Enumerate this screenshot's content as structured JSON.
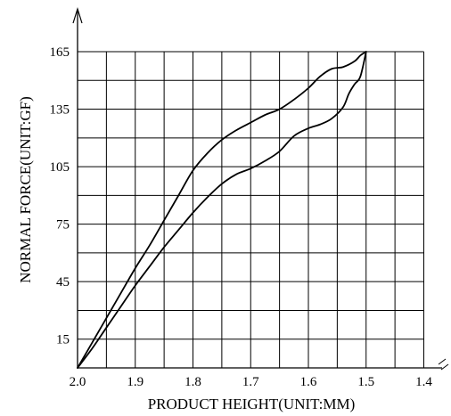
{
  "chart_data": {
    "type": "line",
    "xlabel": "PRODUCT HEIGHT(UNIT:MM)",
    "ylabel": "NORMAL FORCE(UNIT:GF)",
    "x_ticks": [
      "2.0",
      "1.9",
      "1.8",
      "1.7",
      "1.6",
      "1.5",
      "1.4"
    ],
    "y_ticks": [
      "15",
      "45",
      "75",
      "105",
      "135",
      "165"
    ],
    "xlim": [
      2.0,
      1.4
    ],
    "ylim": [
      0,
      165
    ],
    "x_reversed": true,
    "grid": true,
    "series": [
      {
        "x": [
          2.0,
          1.975,
          1.95,
          1.925,
          1.9,
          1.875,
          1.85,
          1.825,
          1.8,
          1.775,
          1.75,
          1.725,
          1.7,
          1.675,
          1.65,
          1.625,
          1.6,
          1.58,
          1.56,
          1.54,
          1.52,
          1.51,
          1.5
        ],
        "y": [
          0,
          13,
          26,
          39,
          52,
          64,
          77,
          90,
          103,
          112,
          119,
          124,
          128,
          132,
          135,
          140,
          146,
          152,
          156,
          157,
          160,
          163,
          165
        ]
      },
      {
        "x": [
          2.0,
          1.975,
          1.95,
          1.925,
          1.9,
          1.875,
          1.85,
          1.825,
          1.8,
          1.775,
          1.75,
          1.725,
          1.7,
          1.675,
          1.65,
          1.625,
          1.6,
          1.58,
          1.56,
          1.54,
          1.53,
          1.52,
          1.51,
          1.5
        ],
        "y": [
          0,
          10,
          21,
          32,
          43,
          53,
          63,
          72,
          81,
          89,
          96,
          101,
          104,
          108,
          113,
          121,
          125,
          127,
          130,
          136,
          143,
          148,
          152,
          165
        ]
      }
    ]
  }
}
